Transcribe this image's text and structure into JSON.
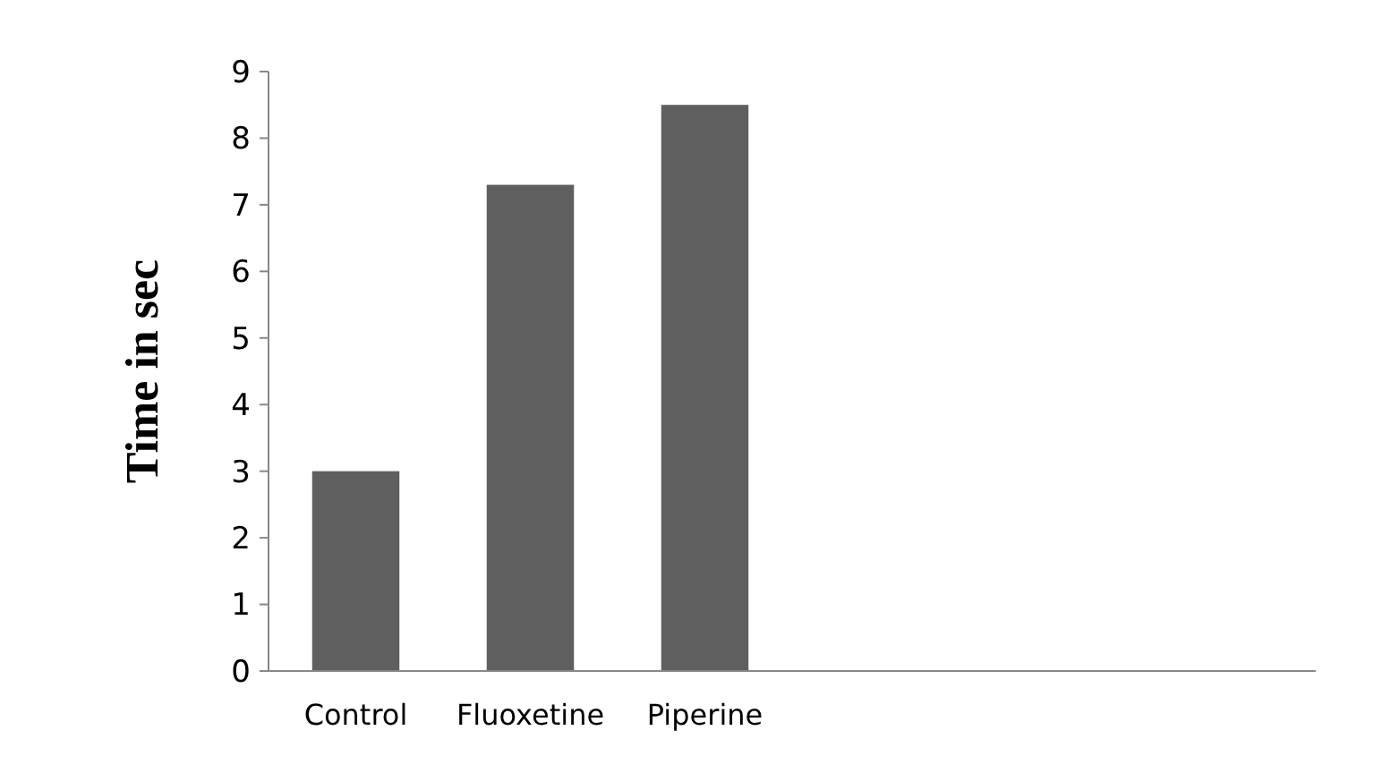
{
  "chart_data": {
    "type": "bar",
    "ylabel": "Time in sec",
    "categories": [
      "Control",
      "Fluoxetine",
      "Piperine",
      null,
      null,
      null
    ],
    "values": [
      3.0,
      7.3,
      8.5,
      null,
      null,
      null
    ],
    "color": "#5f5f5f",
    "ylim": [
      0,
      9
    ],
    "yticks": [
      0,
      1,
      2,
      3,
      4,
      5,
      6,
      7,
      8,
      9
    ],
    "grid": false
  }
}
